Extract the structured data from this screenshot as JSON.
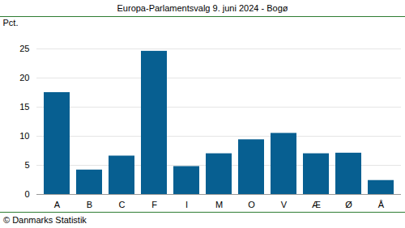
{
  "chart_data": {
    "type": "bar",
    "title": "Europa-Parlamentsvalg 9. juni 2024 - Bogø",
    "y_label": "Pct.",
    "caption": "© Danmarks Statistik",
    "categories": [
      "A",
      "B",
      "C",
      "F",
      "I",
      "M",
      "O",
      "V",
      "Æ",
      "Ø",
      "Å"
    ],
    "values": [
      17.5,
      4.2,
      6.6,
      24.6,
      4.8,
      7.0,
      9.4,
      10.5,
      7.0,
      7.1,
      2.4
    ],
    "color": "#075f91",
    "ylim": [
      0,
      25
    ],
    "yticks": [
      0,
      5,
      10,
      15,
      20,
      25
    ],
    "grid": true
  }
}
